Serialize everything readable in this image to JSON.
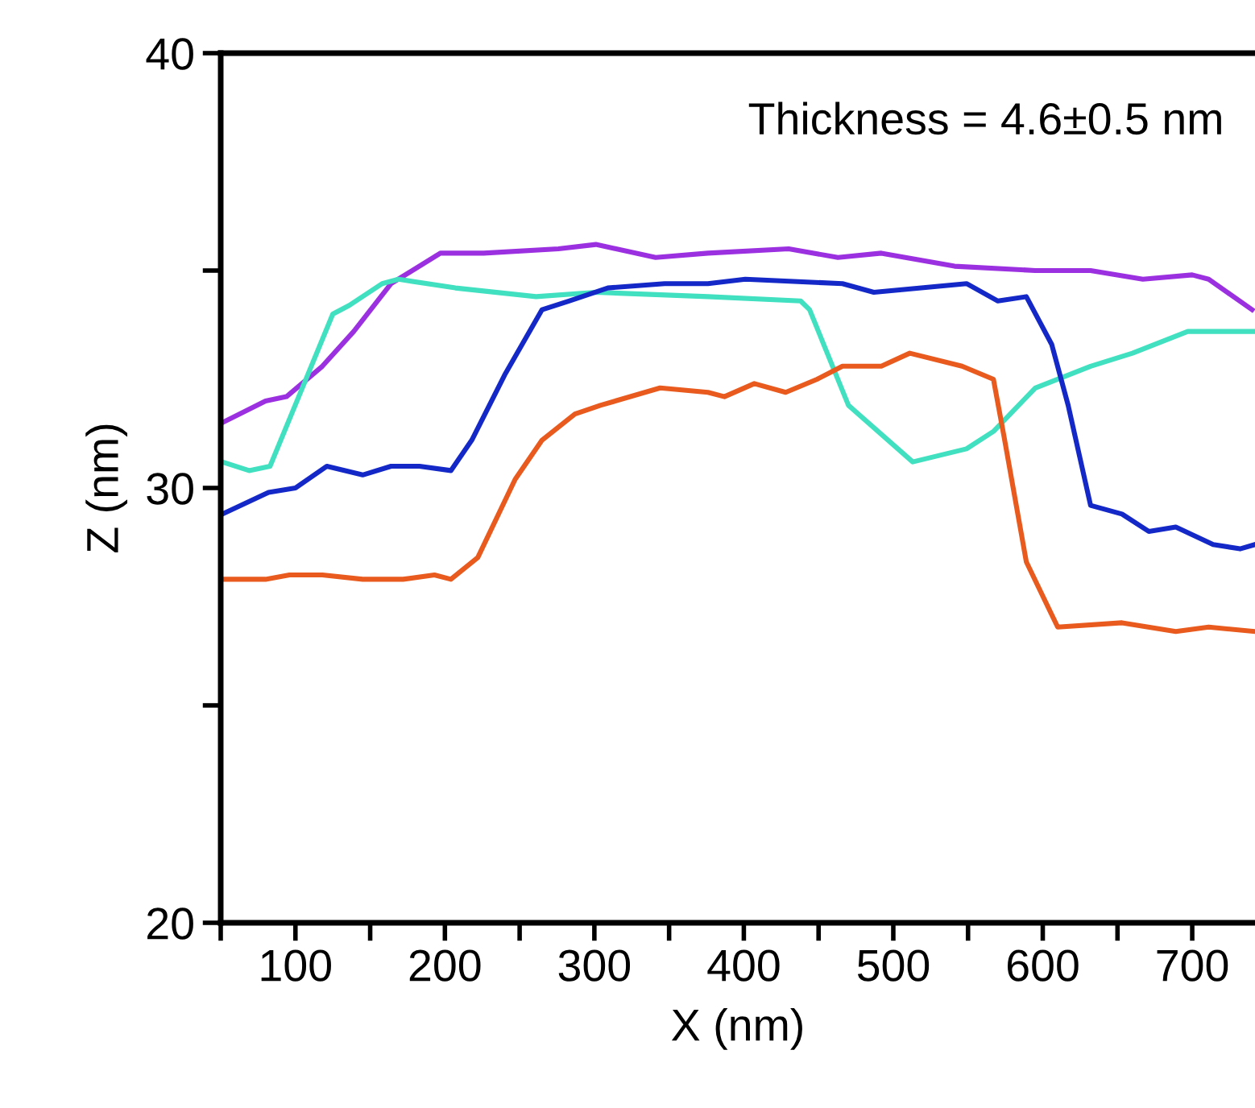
{
  "chart_data": {
    "type": "line",
    "xlabel": "X (nm)",
    "ylabel": "Z (nm)",
    "annotations": [
      "Thickness = 4.6±0.5 nm"
    ],
    "xlim": [
      50,
      742
    ],
    "ylim": [
      20,
      40
    ],
    "xticks": [
      {
        "value": 50,
        "label": null
      },
      100,
      {
        "value": 150,
        "label": null
      },
      200,
      {
        "value": 250,
        "label": null
      },
      300,
      {
        "value": 350,
        "label": null
      },
      400,
      {
        "value": 450,
        "label": null
      },
      500,
      {
        "value": 550,
        "label": null
      },
      600,
      {
        "value": 650,
        "label": null
      },
      700
    ],
    "yticks": [
      20,
      {
        "value": 25,
        "label": null
      },
      30,
      {
        "value": 35,
        "label": null
      },
      40
    ],
    "grid": false,
    "legend": false,
    "line_style": "solid",
    "marker": "none",
    "series": [
      {
        "color": "#9b30e0",
        "x": [
          51,
          80,
          94,
          118,
          139,
          164,
          197,
          226,
          276,
          301,
          341,
          376,
          430,
          463,
          492,
          541,
          595,
          632,
          667,
          700,
          711,
          740
        ],
        "values": [
          31.5,
          32.0,
          32.1,
          32.8,
          33.6,
          34.7,
          35.4,
          35.4,
          35.5,
          35.6,
          35.3,
          35.4,
          35.5,
          35.3,
          35.4,
          35.1,
          35.0,
          35.0,
          34.8,
          34.9,
          34.8,
          34.1
        ]
      },
      {
        "color": "#40e0c0",
        "x": [
          51,
          69,
          83,
          125,
          136,
          158,
          169,
          207,
          261,
          301,
          376,
          438,
          444,
          470,
          513,
          549,
          567,
          595,
          632,
          660,
          697,
          714,
          742
        ],
        "values": [
          30.6,
          30.4,
          30.5,
          34.0,
          34.2,
          34.7,
          34.8,
          34.6,
          34.4,
          34.5,
          34.4,
          34.3,
          34.1,
          31.9,
          30.6,
          30.9,
          31.3,
          32.3,
          32.8,
          33.1,
          33.6,
          33.6,
          33.6
        ]
      },
      {
        "color": "#1428c8",
        "x": [
          51,
          82,
          100,
          121,
          145,
          164,
          183,
          204,
          218,
          240,
          265,
          283,
          309,
          347,
          376,
          401,
          466,
          487,
          549,
          570,
          589,
          606,
          617,
          632,
          653,
          671,
          689,
          714,
          732,
          742
        ],
        "values": [
          29.4,
          29.9,
          30.0,
          30.5,
          30.3,
          30.5,
          30.5,
          30.4,
          31.1,
          32.6,
          34.1,
          34.3,
          34.6,
          34.7,
          34.7,
          34.8,
          34.7,
          34.5,
          34.7,
          34.3,
          34.4,
          33.3,
          31.9,
          29.6,
          29.4,
          29.0,
          29.1,
          28.7,
          28.6,
          28.7
        ]
      },
      {
        "color": "#e85a1e",
        "x": [
          51,
          80,
          96,
          118,
          145,
          172,
          193,
          204,
          222,
          247,
          265,
          287,
          304,
          344,
          376,
          387,
          407,
          428,
          449,
          466,
          492,
          511,
          546,
          567,
          574,
          589,
          610,
          653,
          689,
          711,
          742
        ],
        "values": [
          27.9,
          27.9,
          28.0,
          28.0,
          27.9,
          27.9,
          28.0,
          27.9,
          28.4,
          30.2,
          31.1,
          31.7,
          31.9,
          32.3,
          32.2,
          32.1,
          32.4,
          32.2,
          32.5,
          32.8,
          32.8,
          33.1,
          32.8,
          32.5,
          31.2,
          28.3,
          26.8,
          26.9,
          26.7,
          26.8,
          26.7
        ]
      }
    ]
  }
}
